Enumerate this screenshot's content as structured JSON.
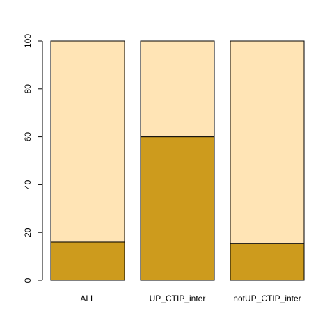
{
  "chart_data": {
    "type": "bar",
    "stacked": true,
    "categories": [
      "ALL",
      "UP_CTIP_inter",
      "notUP_CTIP_inter"
    ],
    "series": [
      {
        "values": [
          16,
          60,
          15.5
        ],
        "color": "#cd9b1d"
      },
      {
        "values": [
          84,
          40,
          84.5
        ],
        "color": "#ffe4b5"
      }
    ],
    "ylim": [
      0,
      100
    ],
    "yticks": [
      0,
      20,
      40,
      60,
      80,
      100
    ],
    "title": "",
    "xlabel": "",
    "ylabel": "",
    "grid": false,
    "legend": "none"
  }
}
